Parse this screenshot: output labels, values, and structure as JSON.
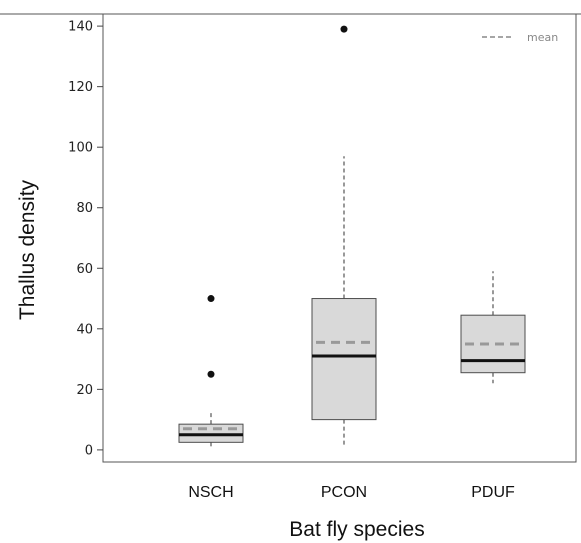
{
  "chart_data": {
    "type": "box",
    "xlabel": "Bat fly species",
    "ylabel": "Thallus density",
    "ylim": [
      -4,
      144
    ],
    "yticks": [
      0,
      20,
      40,
      60,
      80,
      100,
      120,
      140
    ],
    "categories": [
      "NSCH",
      "PCON",
      "PDUF"
    ],
    "boxes": [
      {
        "category": "NSCH",
        "whisker_low": 1,
        "q1": 2.5,
        "median": 5,
        "q3": 8.5,
        "whisker_high": 13,
        "mean": 7,
        "outliers": [
          25,
          50
        ]
      },
      {
        "category": "PCON",
        "whisker_low": 1,
        "q1": 10,
        "median": 31,
        "q3": 50,
        "whisker_high": 97,
        "mean": 35.5,
        "outliers": [
          139
        ]
      },
      {
        "category": "PDUF",
        "whisker_low": 22,
        "q1": 25.5,
        "median": 29.5,
        "q3": 44.5,
        "whisker_high": 59,
        "mean": 35,
        "outliers": []
      }
    ],
    "legend": {
      "entries": [
        "mean"
      ],
      "position": "top-right"
    },
    "grid": false,
    "colors": {
      "box_fill": "#d9d9d9",
      "box_stroke": "#4d4d4d",
      "median": "#111111",
      "mean": "#999999"
    }
  }
}
